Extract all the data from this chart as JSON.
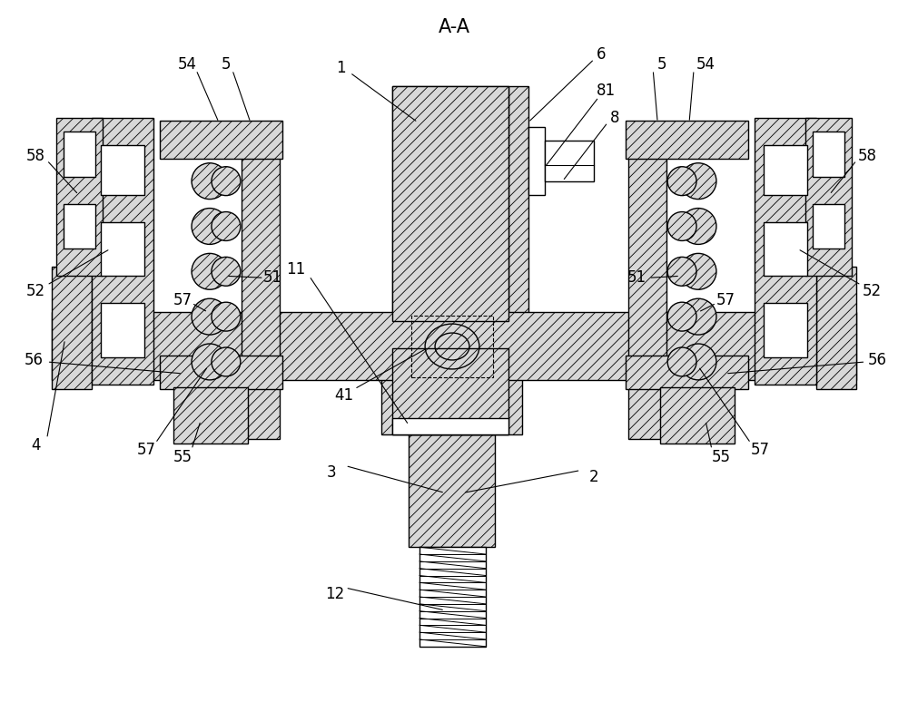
{
  "bg_color": "#ffffff",
  "lw": 1.0,
  "hatch_lw": 0.5,
  "title": "A-A",
  "fig_w": 10.0,
  "fig_h": 7.74,
  "dpi": 100
}
